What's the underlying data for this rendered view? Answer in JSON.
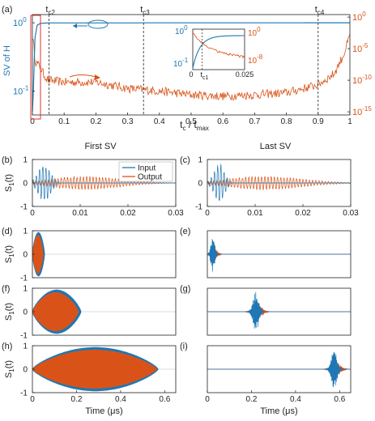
{
  "colors": {
    "blue": "#1f77b4",
    "orange": "#d95319",
    "axis": "#222222",
    "red_box": "#e03030"
  },
  "chart_data": [
    {
      "id": "a",
      "type": "line",
      "panel_label": "(a)",
      "xlabel": "t",
      "xlabel_sub": "c",
      "xlabel_tail": " /  t",
      "xlabel_sub2": "max",
      "ylabel_left": "SV of H",
      "xlim": [
        0,
        1
      ],
      "xticks": [
        0,
        0.1,
        0.2,
        0.3,
        0.4,
        0.5,
        0.6,
        0.7,
        0.8,
        0.9,
        1
      ],
      "xtick_labels": [
        "0",
        "0.1",
        "0.2",
        "0.3",
        "0.4",
        "0.5",
        "0.6",
        "0.7",
        "0.8",
        "0.9",
        "1"
      ],
      "y_left_scale": "log",
      "y_left_ticks": [
        {
          "base": "10",
          "exp": "0"
        },
        {
          "base": "10",
          "exp": "-1"
        }
      ],
      "y_right_scale": "log",
      "y_right_ticks": [
        {
          "base": "10",
          "exp": "0"
        },
        {
          "base": "10",
          "exp": "-5"
        },
        {
          "base": "10",
          "exp": "-10"
        },
        {
          "base": "10",
          "exp": "-15"
        }
      ],
      "vlines": [
        {
          "x": 0.052,
          "base": "t",
          "sub": "c2"
        },
        {
          "x": 0.35,
          "base": "t",
          "sub": "c3"
        },
        {
          "x": 0.9,
          "base": "t",
          "sub": "c4"
        }
      ],
      "series": [
        {
          "axis": "left",
          "description": "first SV",
          "points": [
            [
              0,
              0.05
            ],
            [
              0.003,
              0.1
            ],
            [
              0.008,
              0.6
            ],
            [
              0.015,
              0.92
            ],
            [
              0.025,
              0.98
            ],
            [
              0.05,
              0.995
            ],
            [
              1,
              1.0
            ]
          ]
        },
        {
          "axis": "right",
          "description": "last SV",
          "points": [
            [
              0,
              0.001
            ],
            [
              0.01,
              1e-07
            ],
            [
              0.025,
              1e-08
            ],
            [
              0.035,
              1e-09
            ],
            [
              0.05,
              1e-10
            ],
            [
              0.1,
              5e-11
            ],
            [
              0.2,
              5e-11
            ],
            [
              0.3,
              5e-12
            ],
            [
              0.4,
              2e-12
            ],
            [
              0.5,
              5e-13
            ],
            [
              0.6,
              3e-13
            ],
            [
              0.7,
              5e-13
            ],
            [
              0.8,
              1e-12
            ],
            [
              0.9,
              2e-11
            ],
            [
              0.95,
              1e-09
            ],
            [
              0.98,
              1e-06
            ],
            [
              1,
              0.001
            ]
          ]
        }
      ],
      "inset": {
        "xlim": [
          0,
          0.025
        ],
        "xtick_labels": [
          "0",
          "0.025"
        ],
        "vline": {
          "x": 0.0045,
          "base": "t",
          "sub": "c1"
        },
        "y_left_ticks": [
          {
            "base": "10",
            "exp": "0"
          },
          {
            "base": "10",
            "exp": "-1"
          }
        ],
        "y_right_ticks": [
          {
            "base": "10",
            "exp": "0"
          },
          {
            "base": "10",
            "exp": "-8"
          }
        ]
      }
    },
    {
      "id": "b",
      "type": "line",
      "panel_label": "(b)",
      "column_title": "First SV",
      "ylabel": "S",
      "ylabel_sub": "1",
      "ylabel_tail": "(t)",
      "xlim": [
        0,
        0.03
      ],
      "xticks": [
        0,
        0.01,
        0.02,
        0.03
      ],
      "xtick_labels": [
        "0",
        "0.01",
        "0.02",
        "0.03"
      ],
      "ylim": [
        -1,
        1
      ],
      "yticks": [
        "1",
        "0",
        "-1"
      ],
      "legend": [
        "Input",
        "Output"
      ],
      "legend_position": "top-right",
      "signal": {
        "input": {
          "center": 0.0025,
          "width": 0.0018,
          "freq": 1500,
          "amp": 0.85
        },
        "output": {
          "center": 0.011,
          "width": 0.01,
          "freq": 1500,
          "amp": 0.3
        }
      }
    },
    {
      "id": "c",
      "type": "line",
      "panel_label": "(c)",
      "column_title": "Last SV",
      "xlim": [
        0,
        0.03
      ],
      "xticks": [
        0,
        0.01,
        0.02,
        0.03
      ],
      "xtick_labels": [
        "0",
        "0.01",
        "0.02",
        "0.03"
      ],
      "ylim": [
        -1,
        1
      ],
      "yticks": [
        "1",
        "0",
        "-1"
      ],
      "signal": {
        "input": {
          "center": 0.0025,
          "width": 0.0015,
          "freq": 1500,
          "amp": 0.9
        },
        "output": {
          "center": 0.012,
          "width": 0.011,
          "freq": 1500,
          "amp": 0.3
        }
      }
    },
    {
      "id": "d",
      "type": "area",
      "panel_label": "(d)",
      "ylabel": "S",
      "ylabel_sub": "1",
      "ylabel_tail": "(t)",
      "xlim": [
        0,
        0.65
      ],
      "ylim": [
        -1,
        1
      ],
      "yticks": [
        "1",
        "0",
        "-1"
      ],
      "envelope": {
        "input": [
          0,
          0.055
        ],
        "output": [
          0,
          0.05
        ]
      }
    },
    {
      "id": "e",
      "type": "line",
      "panel_label": "(e)",
      "xlim": [
        0,
        0.65
      ],
      "ylim": [
        -1,
        1
      ],
      "burst": {
        "center": 0.025,
        "width": 0.012,
        "amp": 0.8
      }
    },
    {
      "id": "f",
      "type": "area",
      "panel_label": "(f)",
      "ylabel": "S",
      "ylabel_sub": "1",
      "ylabel_tail": "(t)",
      "xlim": [
        0,
        0.65
      ],
      "ylim": [
        -1,
        1
      ],
      "yticks": [
        "1",
        "0",
        "-1"
      ],
      "envelope": {
        "input": [
          0,
          0.22
        ],
        "output": [
          0,
          0.21
        ]
      }
    },
    {
      "id": "g",
      "type": "line",
      "panel_label": "(g)",
      "xlim": [
        0,
        0.65
      ],
      "ylim": [
        -1,
        1
      ],
      "burst": {
        "center": 0.22,
        "width": 0.018,
        "amp": 0.85
      }
    },
    {
      "id": "h",
      "type": "area",
      "panel_label": "(h)",
      "ylabel": "S",
      "ylabel_sub": "1",
      "ylabel_tail": "(t)",
      "xlabel": "Time (μs)",
      "xlim": [
        0,
        0.65
      ],
      "xticks": [
        0,
        0.2,
        0.4,
        0.6
      ],
      "xtick_labels": [
        "0",
        "0.2",
        "0.4",
        "0.6"
      ],
      "ylim": [
        -1,
        1
      ],
      "yticks": [
        "1",
        "0",
        "-1"
      ],
      "envelope": {
        "input": [
          0,
          0.57
        ],
        "output": [
          0,
          0.565
        ]
      }
    },
    {
      "id": "i",
      "type": "line",
      "panel_label": "(i)",
      "xlabel": "Time (μs)",
      "xlim": [
        0,
        0.65
      ],
      "xticks": [
        0,
        0.2,
        0.4,
        0.6
      ],
      "xtick_labels": [
        "0",
        "0.2",
        "0.4",
        "0.6"
      ],
      "ylim": [
        -1,
        1
      ],
      "burst": {
        "center": 0.575,
        "width": 0.018,
        "amp": 0.85
      }
    }
  ]
}
